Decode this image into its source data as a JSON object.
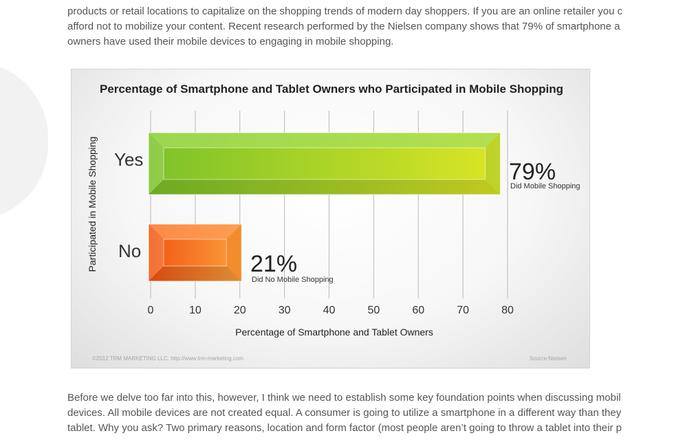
{
  "article": {
    "intro_lines": [
      "products or retail locations to capitalize on the shopping trends of modern day shoppers. If you are an online retailer you c",
      "afford not to mobilize your content. Recent research performed by the Nielsen company shows that 79% of smartphone a",
      "owners have used their mobile devices to engaging in mobile shopping."
    ],
    "outro_lines": [
      "Before we delve too far into this, however, I think we need to establish some key foundation points when discussing mobil",
      "devices. All mobile devices are not created equal. A consumer is going to utilize a smartphone in a different way than they",
      "tablet. Why you ask? Two primary reasons, location and form factor (most people aren’t going to throw a tablet into their p"
    ]
  },
  "chart_data": {
    "type": "bar",
    "orientation": "horizontal",
    "title": "Percentage of Smartphone and Tablet Owners who Participated in Mobile Shopping",
    "xlabel": "Percentage of Smartphone and Tablet Owners",
    "ylabel": "Participated in Mobile Shopping",
    "categories": [
      "Yes",
      "No"
    ],
    "values": [
      79,
      21
    ],
    "value_labels": [
      "79%",
      "21%"
    ],
    "value_sublabels": [
      "Did Mobile Shopping",
      "Did No Mobile Shopping"
    ],
    "xlim": [
      0,
      80
    ],
    "xticks": [
      0,
      10,
      20,
      30,
      40,
      50,
      60,
      70,
      80
    ],
    "grid": true,
    "footer_left": "©2012 TRM MARKETING LLC. http://www.trm-marketing.com",
    "footer_right": "Source:Nielsen",
    "colors": {
      "yes_front_start": "#7cc22a",
      "yes_front_end": "#dbe625",
      "yes_top": "#a6dd5c",
      "yes_side": "#b8d02a",
      "no_front_start": "#f25512",
      "no_front_end": "#fba13d",
      "no_top": "#ff9c5a",
      "no_side": "#f08a2a"
    }
  }
}
